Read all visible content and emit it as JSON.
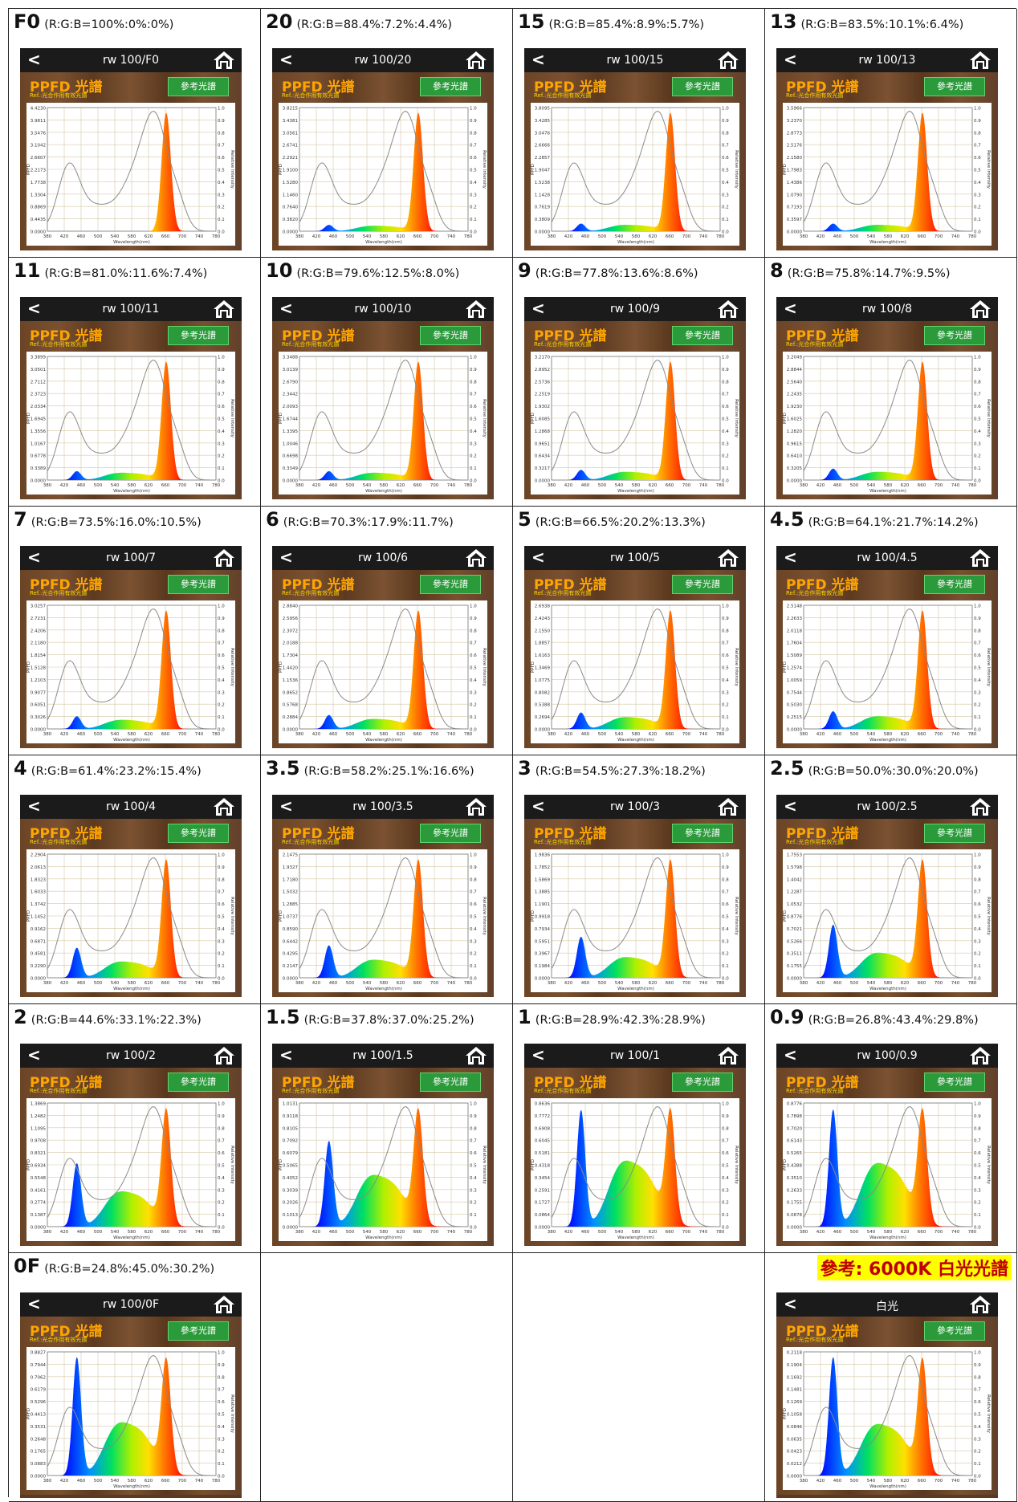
{
  "common": {
    "back_glyph": "<",
    "ppfd_title": "PPFD 光譜",
    "ref_text": "Ref.:光合作用有效光譜",
    "ref_button": "參考光譜",
    "y_label": "PPFD",
    "x_label": "Wavelength(nm)",
    "right_label": "Relative Intensity",
    "x_ticks": [
      "380",
      "420",
      "460",
      "500",
      "540",
      "580",
      "620",
      "660",
      "700",
      "740",
      "780"
    ],
    "right_ticks": [
      "1.0",
      "0.9",
      "0.8",
      "0.7",
      "0.6",
      "0.5",
      "0.4",
      "0.3",
      "0.2",
      "0.1",
      "0.0"
    ]
  },
  "cells": [
    {
      "num": "F0",
      "ratio": "(R:G:B=100%:0%:0%)",
      "screen_title": "rw 100/F0",
      "blue": 0.0,
      "green": 0.0,
      "y_ticks": [
        "4.4230",
        "3.9811",
        "3.5476",
        "3.1042",
        "2.6607",
        "2.2173",
        "1.7738",
        "1.3304",
        "0.8869",
        "0.4435",
        "0.0000"
      ]
    },
    {
      "num": "20",
      "ratio": "(R:G:B=88.4%:7.2%:4.4%)",
      "screen_title": "rw 100/20",
      "blue": 0.05,
      "green": 0.06,
      "y_ticks": [
        "3.8215",
        "3.4381",
        "3.0561",
        "2.6741",
        "2.2921",
        "1.9100",
        "1.5280",
        "1.1460",
        "0.7640",
        "0.3820",
        "0.0000"
      ]
    },
    {
      "num": "15",
      "ratio": "(R:G:B=85.4%:8.9%:5.7%)",
      "screen_title": "rw 100/15",
      "blue": 0.06,
      "green": 0.07,
      "y_ticks": [
        "3.8095",
        "3.4285",
        "3.0476",
        "2.6666",
        "2.2857",
        "1.9047",
        "1.5238",
        "1.1428",
        "0.7619",
        "0.3809",
        "0.0000"
      ]
    },
    {
      "num": "13",
      "ratio": "(R:G:B=83.5%:10.1%:6.4%)",
      "screen_title": "rw 100/13",
      "blue": 0.06,
      "green": 0.07,
      "y_ticks": [
        "3.5966",
        "3.2370",
        "2.8773",
        "2.5176",
        "2.1580",
        "1.7983",
        "1.4386",
        "1.0790",
        "0.7193",
        "0.3597",
        "0.0000"
      ]
    },
    {
      "num": "11",
      "ratio": "(R:G:B=81.0%:11.6%:7.4%)",
      "screen_title": "rw 100/11",
      "blue": 0.07,
      "green": 0.08,
      "y_ticks": [
        "3.3899",
        "3.0501",
        "2.7112",
        "2.3723",
        "2.0334",
        "1.6945",
        "1.3556",
        "1.0167",
        "0.6778",
        "0.3389",
        "0.0000"
      ]
    },
    {
      "num": "10",
      "ratio": "(R:G:B=79.6%:12.5%:8.0%)",
      "screen_title": "rw 100/10",
      "blue": 0.07,
      "green": 0.08,
      "y_ticks": [
        "3.3488",
        "3.0139",
        "2.6790",
        "2.3442",
        "2.0093",
        "1.6744",
        "1.3395",
        "1.0046",
        "0.6698",
        "0.3349",
        "0.0000"
      ]
    },
    {
      "num": "9",
      "ratio": "(R:G:B=77.8%:13.6%:8.6%)",
      "screen_title": "rw 100/9",
      "blue": 0.08,
      "green": 0.09,
      "y_ticks": [
        "3.2170",
        "2.8952",
        "2.5736",
        "2.2519",
        "1.9302",
        "1.6085",
        "1.2868",
        "0.9651",
        "0.6434",
        "0.3217",
        "0.0000"
      ]
    },
    {
      "num": "8",
      "ratio": "(R:G:B=75.8%:14.7%:9.5%)",
      "screen_title": "rw 100/8",
      "blue": 0.09,
      "green": 0.09,
      "y_ticks": [
        "3.2049",
        "2.8844",
        "2.5640",
        "2.2435",
        "1.9230",
        "1.6025",
        "1.2820",
        "0.9615",
        "0.6410",
        "0.3205",
        "0.0000"
      ]
    },
    {
      "num": "7",
      "ratio": "(R:G:B=73.5%:16.0%:10.5%)",
      "screen_title": "rw 100/7",
      "blue": 0.1,
      "green": 0.1,
      "y_ticks": [
        "3.0257",
        "2.7231",
        "2.4206",
        "2.1180",
        "1.8154",
        "1.5128",
        "1.2103",
        "0.9077",
        "0.6051",
        "0.3026",
        "0.0000"
      ]
    },
    {
      "num": "6",
      "ratio": "(R:G:B=70.3%:17.9%:11.7%)",
      "screen_title": "rw 100/6",
      "blue": 0.11,
      "green": 0.11,
      "y_ticks": [
        "2.8840",
        "2.5956",
        "2.3072",
        "2.0188",
        "1.7304",
        "1.4420",
        "1.1536",
        "0.8652",
        "0.5768",
        "0.2884",
        "0.0000"
      ]
    },
    {
      "num": "5",
      "ratio": "(R:G:B=66.5%:20.2%:13.3%)",
      "screen_title": "rw 100/5",
      "blue": 0.13,
      "green": 0.13,
      "y_ticks": [
        "2.6938",
        "2.4243",
        "2.1550",
        "1.8857",
        "1.6163",
        "1.3469",
        "1.0775",
        "0.8082",
        "0.5388",
        "0.2694",
        "0.0000"
      ]
    },
    {
      "num": "4.5",
      "ratio": "(R:G:B=64.1%:21.7%:14.2%)",
      "screen_title": "rw 100/4.5",
      "blue": 0.14,
      "green": 0.14,
      "y_ticks": [
        "2.5148",
        "2.2633",
        "2.0118",
        "1.7604",
        "1.5089",
        "1.2574",
        "1.0059",
        "0.7544",
        "0.5030",
        "0.2515",
        "0.0000"
      ]
    },
    {
      "num": "4",
      "ratio": "(R:G:B=61.4%:23.2%:15.4%)",
      "screen_title": "rw 100/4",
      "blue": 0.24,
      "green": 0.18,
      "y_ticks": [
        "2.2904",
        "2.0613",
        "1.8323",
        "1.6033",
        "1.3742",
        "1.1452",
        "0.9162",
        "0.6871",
        "0.4581",
        "0.2290",
        "0.0000"
      ]
    },
    {
      "num": "3.5",
      "ratio": "(R:G:B=58.2%:25.1%:16.6%)",
      "screen_title": "rw 100/3.5",
      "blue": 0.26,
      "green": 0.2,
      "y_ticks": [
        "2.1475",
        "1.9327",
        "1.7180",
        "1.5032",
        "1.2885",
        "1.0737",
        "0.8590",
        "0.6442",
        "0.4295",
        "0.2147",
        "0.0000"
      ]
    },
    {
      "num": "3",
      "ratio": "(R:G:B=54.5%:27.3%:18.2%)",
      "screen_title": "rw 100/3",
      "blue": 0.33,
      "green": 0.23,
      "y_ticks": [
        "1.9836",
        "1.7852",
        "1.5869",
        "1.3885",
        "1.1901",
        "0.9918",
        "0.7934",
        "0.5951",
        "0.3967",
        "0.1984",
        "0.0000"
      ]
    },
    {
      "num": "2.5",
      "ratio": "(R:G:B=50.0%:30.0%:20.0%)",
      "screen_title": "rw 100/2.5",
      "blue": 0.43,
      "green": 0.28,
      "y_ticks": [
        "1.7553",
        "1.5798",
        "1.4042",
        "1.2287",
        "1.0532",
        "0.8776",
        "0.7021",
        "0.5266",
        "0.3511",
        "0.1755",
        "0.0000"
      ]
    },
    {
      "num": "2",
      "ratio": "(R:G:B=44.6%:33.1%:22.3%)",
      "screen_title": "rw 100/2",
      "blue": 0.52,
      "green": 0.4,
      "y_ticks": [
        "1.3869",
        "1.2482",
        "1.1095",
        "0.9708",
        "0.8321",
        "0.6934",
        "0.5548",
        "0.4161",
        "0.2774",
        "0.1387",
        "0.0000"
      ]
    },
    {
      "num": "1.5",
      "ratio": "(R:G:B=37.8%:37.0%:25.2%)",
      "screen_title": "rw 100/1.5",
      "blue": 0.72,
      "green": 0.6,
      "y_ticks": [
        "1.0131",
        "0.9118",
        "0.8105",
        "0.7092",
        "0.6079",
        "0.5065",
        "0.4052",
        "0.3039",
        "0.2026",
        "0.1013",
        "0.0000"
      ]
    },
    {
      "num": "1",
      "ratio": "(R:G:B=28.9%:42.3%:28.9%)",
      "screen_title": "rw 100/1",
      "blue": 1.0,
      "green": 0.78,
      "y_ticks": [
        "0.8636",
        "0.7772",
        "0.6908",
        "0.6045",
        "0.5181",
        "0.4318",
        "0.3454",
        "0.2591",
        "0.1727",
        "0.0864",
        "0.0000"
      ]
    },
    {
      "num": "0.9",
      "ratio": "(R:G:B=26.8%:43.4%:29.8%)",
      "screen_title": "rw 100/0.9",
      "blue": 1.0,
      "green": 0.75,
      "y_ticks": [
        "0.8776",
        "0.7898",
        "0.7020",
        "0.6143",
        "0.5265",
        "0.4388",
        "0.3510",
        "0.2633",
        "0.1755",
        "0.0878",
        "0.0000"
      ]
    },
    {
      "num": "0F",
      "ratio": "(R:G:B=24.8%:45.0%:30.2%)",
      "screen_title": "rw 100/0F",
      "blue": 1.0,
      "green": 0.62,
      "y_ticks": [
        "0.8827",
        "0.7944",
        "0.7062",
        "0.6179",
        "0.5296",
        "0.4413",
        "0.3531",
        "0.2648",
        "0.1765",
        "0.0883",
        "0.0000"
      ]
    }
  ],
  "reference_cell": {
    "title": "參考: 6000K 白光光譜",
    "screen_title": "白光",
    "blue": 1.0,
    "green": 0.6,
    "y_ticks": [
      "0.2118",
      "0.1904",
      "0.1692",
      "0.1481",
      "0.1269",
      "0.1058",
      "0.0846",
      "0.0635",
      "0.0423",
      "0.0212",
      "0.0000"
    ]
  },
  "colors": {
    "title_bar": "#1b1b1b",
    "ppfd_title": "#ffa500",
    "ref_text": "#ffd700",
    "ref_button": "#2a9a3a",
    "highlight": "#ffff00",
    "highlight_text": "#c00000"
  },
  "icons": {
    "back": "chevron-left-icon",
    "home": "home-icon"
  }
}
